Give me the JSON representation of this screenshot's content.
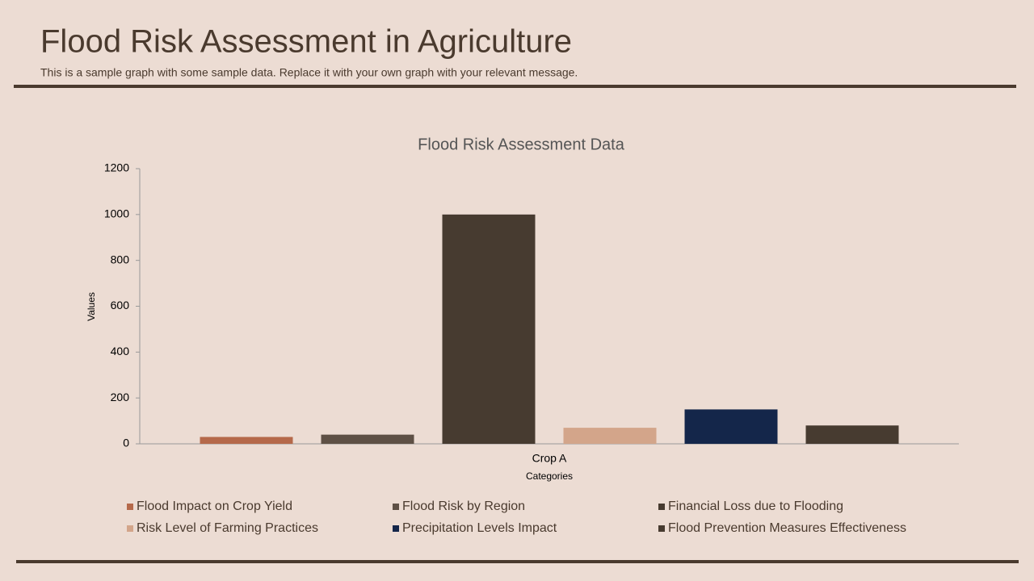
{
  "header": {
    "title": "Flood Risk Assessment in Agriculture",
    "subtitle": "This is a sample graph with some sample data. Replace it with your own graph with your relevant message."
  },
  "chart_data": {
    "type": "bar",
    "title": "Flood Risk Assessment Data",
    "x_label": "Categories",
    "y_label": "Values",
    "categories": [
      "Crop A"
    ],
    "series": [
      {
        "name": "Flood Impact on Crop Yield",
        "color": "#b5694a",
        "values": [
          30
        ]
      },
      {
        "name": "Flood Risk by Region",
        "color": "#5e5045",
        "values": [
          40
        ]
      },
      {
        "name": "Financial Loss due to Flooding",
        "color": "#473b30",
        "values": [
          1000
        ]
      },
      {
        "name": "Risk Level of Farming Practices",
        "color": "#d3a58a",
        "values": [
          70
        ]
      },
      {
        "name": "Precipitation Levels Impact",
        "color": "#14264a",
        "values": [
          150
        ]
      },
      {
        "name": "Flood Prevention Measures Effectiveness",
        "color": "#473b30",
        "values": [
          80
        ]
      }
    ],
    "ylim": [
      0,
      1200
    ],
    "yticks": [
      0,
      200,
      400,
      600,
      800,
      1000,
      1200
    ],
    "grid": false
  }
}
